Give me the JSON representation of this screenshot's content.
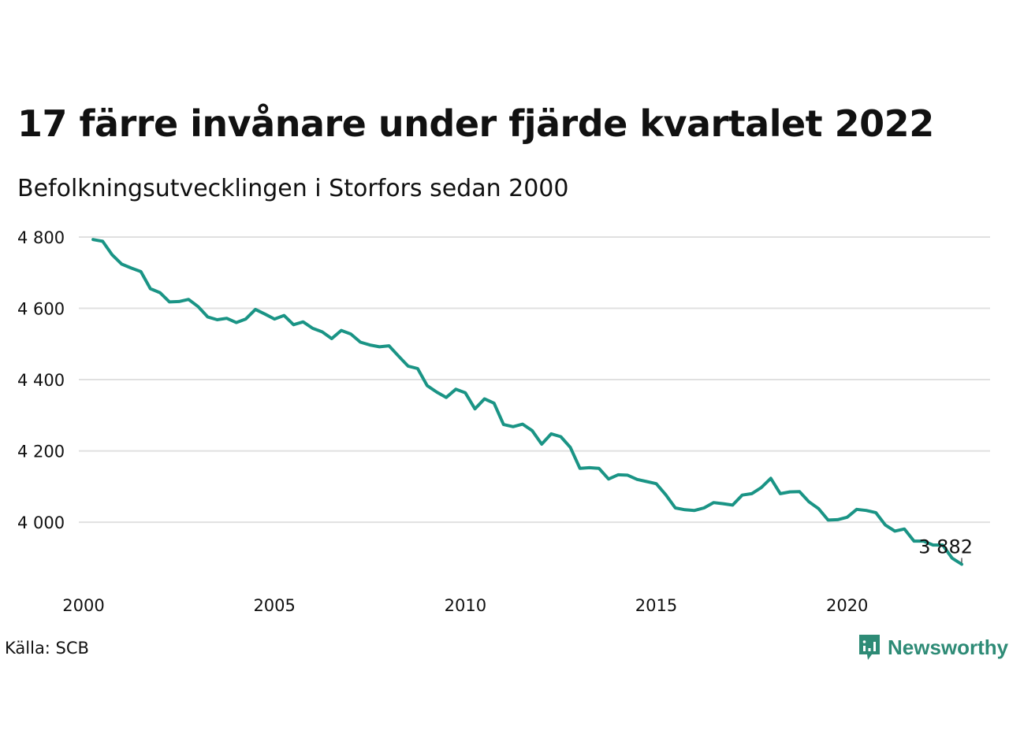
{
  "title": "17 färre invånare under fjärde kvartalet 2022",
  "subtitle": "Befolkningsutvecklingen i Storfors sedan 2000",
  "source": "Källa: SCB",
  "brand": {
    "name": "Newsworthy",
    "icon": "newsworthy-logo-icon",
    "color": "#2e8b76"
  },
  "colors": {
    "line": "#1a9485",
    "grid": "#e0e0e0"
  },
  "chart_data": {
    "type": "line",
    "title": "17 färre invånare under fjärde kvartalet 2022",
    "subtitle": "Befolkningsutvecklingen i Storfors sedan 2000",
    "xlabel": "",
    "ylabel": "",
    "xlim": [
      2000,
      2023.75
    ],
    "ylim": [
      3850,
      4800
    ],
    "x_ticks": [
      2000,
      2005,
      2010,
      2015,
      2020
    ],
    "x_tick_labels": [
      "2000",
      "2005",
      "2010",
      "2015",
      "2020"
    ],
    "y_ticks": [
      4000,
      4200,
      4400,
      4600,
      4800
    ],
    "y_tick_labels": [
      "4 000",
      "4 200",
      "4 400",
      "4 600",
      "4 800"
    ],
    "grid": true,
    "end_label": "3 882",
    "series": [
      {
        "x": [
          2000.25,
          2000.5,
          2000.75,
          2001.0,
          2001.25,
          2001.5,
          2001.75,
          2002.0,
          2002.25,
          2002.5,
          2002.75,
          2003.0,
          2003.25,
          2003.5,
          2003.75,
          2004.0,
          2004.25,
          2004.5,
          2004.75,
          2005.0,
          2005.25,
          2005.5,
          2005.75,
          2006.0,
          2006.25,
          2006.5,
          2006.75,
          2007.0,
          2007.25,
          2007.5,
          2007.75,
          2008.0,
          2008.25,
          2008.5,
          2008.75,
          2009.0,
          2009.25,
          2009.5,
          2009.75,
          2010.0,
          2010.25,
          2010.5,
          2010.75,
          2011.0,
          2011.25,
          2011.5,
          2011.75,
          2012.0,
          2012.25,
          2012.5,
          2012.75,
          2013.0,
          2013.25,
          2013.5,
          2013.75,
          2014.0,
          2014.25,
          2014.5,
          2014.75,
          2015.0,
          2015.25,
          2015.5,
          2015.75,
          2016.0,
          2016.25,
          2016.5,
          2016.75,
          2017.0,
          2017.25,
          2017.5,
          2017.75,
          2018.0,
          2018.25,
          2018.5,
          2018.75,
          2019.0,
          2019.25,
          2019.5,
          2019.75,
          2020.0,
          2020.25,
          2020.5,
          2020.75,
          2021.0,
          2021.25,
          2021.5,
          2021.75,
          2022.0,
          2022.25,
          2022.5,
          2022.75,
          2023.0
        ],
        "y": [
          4793,
          4788,
          4750,
          4724,
          4713,
          4703,
          4655,
          4644,
          4618,
          4619,
          4625,
          4605,
          4576,
          4568,
          4572,
          4560,
          4570,
          4597,
          4584,
          4570,
          4580,
          4554,
          4562,
          4544,
          4534,
          4515,
          4538,
          4528,
          4505,
          4497,
          4492,
          4495,
          4466,
          4438,
          4431,
          4383,
          4365,
          4350,
          4373,
          4363,
          4318,
          4346,
          4334,
          4274,
          4268,
          4275,
          4257,
          4219,
          4248,
          4240,
          4210,
          4151,
          4153,
          4151,
          4121,
          4133,
          4132,
          4120,
          4114,
          4108,
          4077,
          4040,
          4035,
          4033,
          4040,
          4055,
          4052,
          4048,
          4076,
          4080,
          4097,
          4123,
          4080,
          4085,
          4086,
          4057,
          4038,
          4006,
          4007,
          4014,
          4036,
          4033,
          4027,
          3992,
          3975,
          3981,
          3947,
          3947,
          3936,
          3936,
          3899,
          3882
        ]
      }
    ]
  }
}
